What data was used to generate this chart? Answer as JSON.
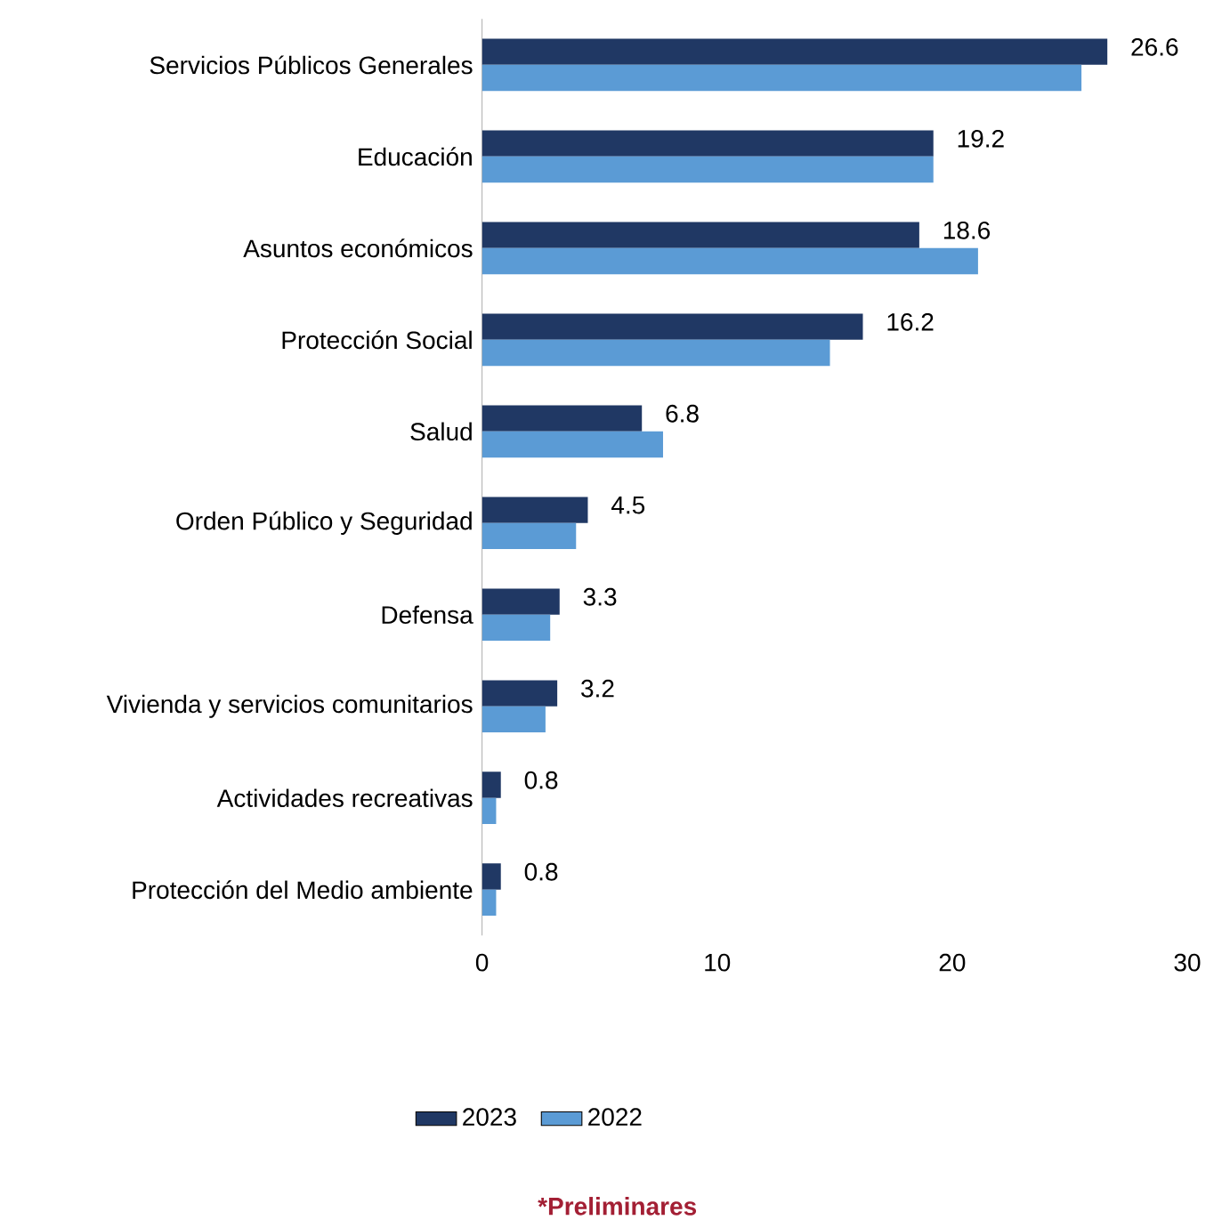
{
  "chart_data": {
    "type": "bar",
    "orientation": "horizontal",
    "categories": [
      "Servicios Públicos Generales",
      "Educación",
      "Asuntos económicos",
      "Protección Social",
      "Salud",
      "Orden Público y Seguridad",
      "Defensa",
      "Vivienda y servicios comunitarios",
      "Actividades recreativas",
      "Protección del Medio ambiente"
    ],
    "series": [
      {
        "name": "2023",
        "color": "#203864",
        "values": [
          26.6,
          19.2,
          18.6,
          16.2,
          6.8,
          4.5,
          3.3,
          3.2,
          0.8,
          0.8
        ],
        "value_labels": [
          "26.6",
          "19.2",
          "18.6",
          "16.2",
          "6.8",
          "4.5",
          "3.3",
          "3.2",
          "0.8",
          "0.8"
        ]
      },
      {
        "name": "2022",
        "color": "#5b9bd5",
        "values": [
          25.5,
          19.2,
          21.1,
          14.8,
          7.7,
          4.0,
          2.9,
          2.7,
          0.6,
          0.6
        ]
      }
    ],
    "xlim": [
      0,
      30
    ],
    "xticks": [
      0,
      10,
      20,
      30
    ],
    "legend": "bottom",
    "annotations": [
      "*Preliminares"
    ]
  }
}
